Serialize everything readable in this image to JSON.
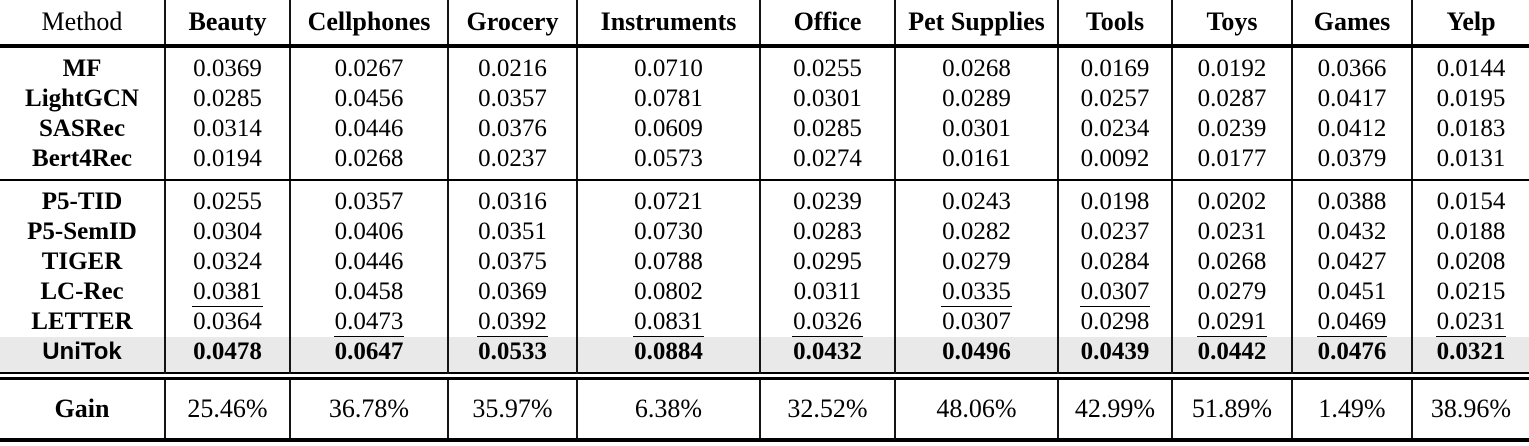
{
  "colors": {
    "highlight_row_bg": "#e9e9e9",
    "rule_color": "#000000",
    "text_color": "#000000",
    "page_bg": "#ffffff"
  },
  "table": {
    "header": {
      "method_label": "Method",
      "datasets": [
        "Beauty",
        "Cellphones",
        "Grocery",
        "Instruments",
        "Office",
        "Pet Supplies",
        "Tools",
        "Toys",
        "Games",
        "Yelp"
      ]
    },
    "groups": [
      {
        "rows": [
          {
            "method": "MF",
            "values": [
              "0.0369",
              "0.0267",
              "0.0216",
              "0.0710",
              "0.0255",
              "0.0268",
              "0.0169",
              "0.0192",
              "0.0366",
              "0.0144"
            ]
          },
          {
            "method": "LightGCN",
            "values": [
              "0.0285",
              "0.0456",
              "0.0357",
              "0.0781",
              "0.0301",
              "0.0289",
              "0.0257",
              "0.0287",
              "0.0417",
              "0.0195"
            ]
          },
          {
            "method": "SASRec",
            "values": [
              "0.0314",
              "0.0446",
              "0.0376",
              "0.0609",
              "0.0285",
              "0.0301",
              "0.0234",
              "0.0239",
              "0.0412",
              "0.0183"
            ]
          },
          {
            "method": "Bert4Rec",
            "values": [
              "0.0194",
              "0.0268",
              "0.0237",
              "0.0573",
              "0.0274",
              "0.0161",
              "0.0092",
              "0.0177",
              "0.0379",
              "0.0131"
            ]
          }
        ]
      },
      {
        "rows": [
          {
            "method": "P5-TID",
            "values": [
              "0.0255",
              "0.0357",
              "0.0316",
              "0.0721",
              "0.0239",
              "0.0243",
              "0.0198",
              "0.0202",
              "0.0388",
              "0.0154"
            ]
          },
          {
            "method": "P5-SemID",
            "values": [
              "0.0304",
              "0.0406",
              "0.0351",
              "0.0730",
              "0.0283",
              "0.0282",
              "0.0237",
              "0.0231",
              "0.0432",
              "0.0188"
            ]
          },
          {
            "method": "TIGER",
            "values": [
              "0.0324",
              "0.0446",
              "0.0375",
              "0.0788",
              "0.0295",
              "0.0279",
              "0.0284",
              "0.0268",
              "0.0427",
              "0.0208"
            ]
          },
          {
            "method": "LC-Rec",
            "values": [
              "0.0381",
              "0.0458",
              "0.0369",
              "0.0802",
              "0.0311",
              "0.0335",
              "0.0307",
              "0.0279",
              "0.0451",
              "0.0215"
            ],
            "underlined_columns": [
              0,
              5,
              6
            ]
          },
          {
            "method": "LETTER",
            "values": [
              "0.0364",
              "0.0473",
              "0.0392",
              "0.0831",
              "0.0326",
              "0.0307",
              "0.0298",
              "0.0291",
              "0.0469",
              "0.0231"
            ],
            "underlined_columns": [
              1,
              2,
              3,
              4,
              7,
              8,
              9
            ]
          },
          {
            "method": "UniTok",
            "values": [
              "0.0478",
              "0.0647",
              "0.0533",
              "0.0884",
              "0.0432",
              "0.0496",
              "0.0439",
              "0.0442",
              "0.0476",
              "0.0321"
            ],
            "bold_values": true,
            "highlighted": true,
            "sans_label": true
          }
        ]
      }
    ],
    "gain_row": {
      "label": "Gain",
      "values": [
        "25.46%",
        "36.78%",
        "35.97%",
        "6.38%",
        "32.52%",
        "48.06%",
        "42.99%",
        "51.89%",
        "1.49%",
        "38.96%"
      ]
    }
  }
}
